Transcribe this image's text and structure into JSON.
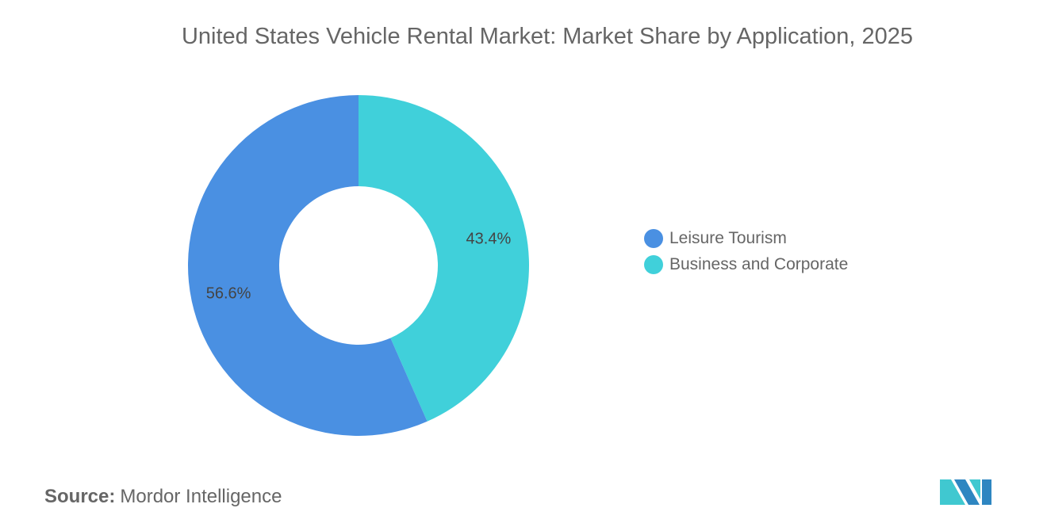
{
  "chart_data": {
    "type": "pie",
    "donut": true,
    "title": "United States Vehicle Rental Market: Market Share by Application, 2025",
    "categories": [
      "Leisure Tourism",
      "Business and Corporate"
    ],
    "values": [
      56.6,
      43.4
    ],
    "labels": [
      "56.6%",
      "43.4%"
    ],
    "colors": [
      "#4A90E2",
      "#40D0DA"
    ],
    "legend_position": "right"
  },
  "source": {
    "label": "Source:",
    "value": "Mordor Intelligence"
  },
  "logo": {
    "colors": [
      "#2E86C1",
      "#40C8D0"
    ]
  }
}
